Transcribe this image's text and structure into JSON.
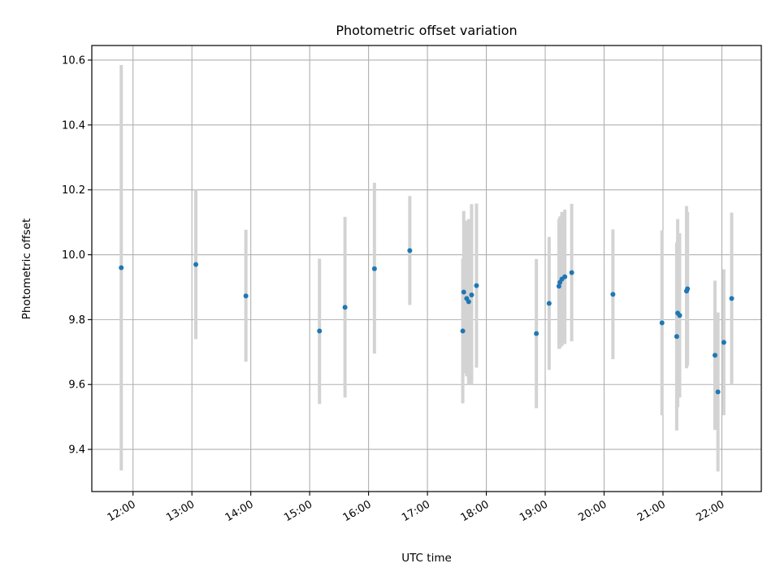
{
  "chart_data": {
    "type": "scatter",
    "title": "Photometric offset variation",
    "xlabel": "UTC time",
    "ylabel": "Photometric offset",
    "ylim": [
      9.27,
      10.645
    ],
    "xlim_hours": [
      11.3,
      22.67
    ],
    "grid": true,
    "x_ticks": [
      "12:00",
      "13:00",
      "14:00",
      "15:00",
      "16:00",
      "17:00",
      "18:00",
      "19:00",
      "20:00",
      "21:00",
      "22:00"
    ],
    "y_ticks": [
      "9.4",
      "9.6",
      "9.8",
      "10.0",
      "10.2",
      "10.4",
      "10.6"
    ],
    "colors": {
      "points": "#1f77b4",
      "error_bars": "#d3d3d3",
      "grid": "#b0b0b0"
    },
    "series": [
      {
        "points": [
          {
            "time": "11:48",
            "y": 9.96,
            "err_low": 9.335,
            "err_high": 10.585
          },
          {
            "time": "13:04",
            "y": 9.97,
            "err_low": 9.74,
            "err_high": 10.2
          },
          {
            "time": "13:55",
            "y": 9.873,
            "err_low": 9.67,
            "err_high": 10.077
          },
          {
            "time": "15:10",
            "y": 9.765,
            "err_low": 9.54,
            "err_high": 9.988
          },
          {
            "time": "15:36",
            "y": 9.838,
            "err_low": 9.56,
            "err_high": 10.117
          },
          {
            "time": "16:06",
            "y": 9.957,
            "err_low": 9.695,
            "err_high": 10.222
          },
          {
            "time": "16:42",
            "y": 10.013,
            "err_low": 9.845,
            "err_high": 10.181
          },
          {
            "time": "17:36",
            "y": 9.765,
            "err_low": 9.542,
            "err_high": 9.988
          },
          {
            "time": "17:37",
            "y": 9.885,
            "err_low": 9.635,
            "err_high": 10.135
          },
          {
            "time": "17:40",
            "y": 9.865,
            "err_low": 9.625,
            "err_high": 10.105
          },
          {
            "time": "17:42",
            "y": 9.855,
            "err_low": 9.6,
            "err_high": 10.11
          },
          {
            "time": "17:45",
            "y": 9.876,
            "err_low": 9.6,
            "err_high": 10.156
          },
          {
            "time": "17:50",
            "y": 9.905,
            "err_low": 9.652,
            "err_high": 10.158
          },
          {
            "time": "18:51",
            "y": 9.757,
            "err_low": 9.527,
            "err_high": 9.987
          },
          {
            "time": "19:04",
            "y": 9.85,
            "err_low": 9.645,
            "err_high": 10.055
          },
          {
            "time": "19:14",
            "y": 9.903,
            "err_low": 9.71,
            "err_high": 10.11
          },
          {
            "time": "19:15",
            "y": 9.915,
            "err_low": 9.712,
            "err_high": 10.118
          },
          {
            "time": "19:17",
            "y": 9.925,
            "err_low": 9.718,
            "err_high": 10.132
          },
          {
            "time": "19:20",
            "y": 9.932,
            "err_low": 9.725,
            "err_high": 10.139
          },
          {
            "time": "19:27",
            "y": 9.945,
            "err_low": 9.733,
            "err_high": 10.157
          },
          {
            "time": "20:09",
            "y": 9.878,
            "err_low": 9.678,
            "err_high": 10.078
          },
          {
            "time": "20:59",
            "y": 9.79,
            "err_low": 9.505,
            "err_high": 10.075
          },
          {
            "time": "21:14",
            "y": 9.748,
            "err_low": 9.458,
            "err_high": 10.038
          },
          {
            "time": "21:15",
            "y": 9.82,
            "err_low": 9.53,
            "err_high": 10.11
          },
          {
            "time": "21:17",
            "y": 9.813,
            "err_low": 9.56,
            "err_high": 10.066
          },
          {
            "time": "21:24",
            "y": 9.888,
            "err_low": 9.65,
            "err_high": 10.15
          },
          {
            "time": "21:25",
            "y": 9.895,
            "err_low": 9.658,
            "err_high": 10.132
          },
          {
            "time": "21:53",
            "y": 9.69,
            "err_low": 9.46,
            "err_high": 9.92
          },
          {
            "time": "21:56",
            "y": 9.577,
            "err_low": 9.332,
            "err_high": 9.822
          },
          {
            "time": "22:02",
            "y": 9.73,
            "err_low": 9.505,
            "err_high": 9.955
          },
          {
            "time": "22:10",
            "y": 9.865,
            "err_low": 9.6,
            "err_high": 10.13
          }
        ]
      }
    ]
  }
}
